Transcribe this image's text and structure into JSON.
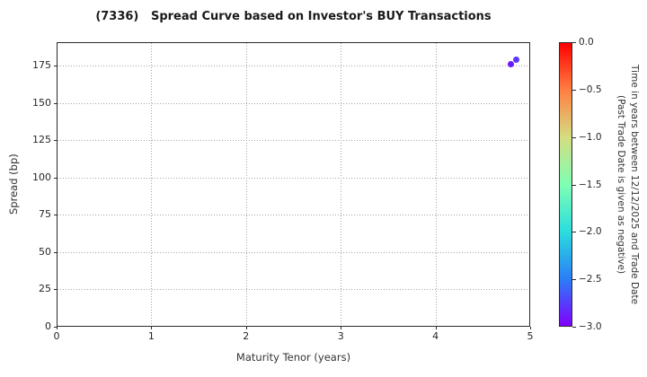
{
  "chart_data": {
    "type": "scatter",
    "title": "(7336)   Spread Curve based on Investor's BUY Transactions",
    "xlabel": "Maturity Tenor (years)",
    "ylabel": "Spread (bp)",
    "xlim": [
      0,
      5
    ],
    "ylim": [
      0,
      190.6
    ],
    "x_ticks": [
      0,
      1,
      2,
      3,
      4,
      5
    ],
    "y_ticks": [
      0,
      25,
      50,
      75,
      100,
      125,
      150,
      175
    ],
    "grid": "dotted",
    "legend_position": "none",
    "points": [
      {
        "x": 4.79,
        "y": 176.5,
        "time_value": -2.95,
        "color": "#7018FF"
      },
      {
        "x": 4.84,
        "y": 179.5,
        "time_value": -2.9,
        "color": "#5C37FD"
      }
    ],
    "colorbar": {
      "label_line1": "Time in years between 12/12/2025 and Trade Date",
      "label_line2": "(Past Trade Date is given as negative)",
      "range_top": 0,
      "range_bottom": -3,
      "tick_labels": [
        "0.0",
        "−0.5",
        "−1.0",
        "−1.5",
        "−2.0",
        "−2.5",
        "−3.0"
      ],
      "tick_values": [
        0,
        -0.5,
        -1.0,
        -1.5,
        -2.0,
        -2.5,
        -3.0
      ],
      "gradient_stops": [
        {
          "pos": 0.0,
          "color": "#FF0000"
        },
        {
          "pos": 0.1667,
          "color": "#FF7F42"
        },
        {
          "pos": 0.3333,
          "color": "#D5DD80"
        },
        {
          "pos": 0.5,
          "color": "#80FFB4"
        },
        {
          "pos": 0.6667,
          "color": "#2ADDDD"
        },
        {
          "pos": 0.8333,
          "color": "#2A7FF6"
        },
        {
          "pos": 1.0,
          "color": "#8000FF"
        }
      ]
    },
    "colors": {
      "spine": "#2b2b2b",
      "grid": "#a3a3a3",
      "text": "#262626",
      "background": "#ffffff"
    }
  }
}
